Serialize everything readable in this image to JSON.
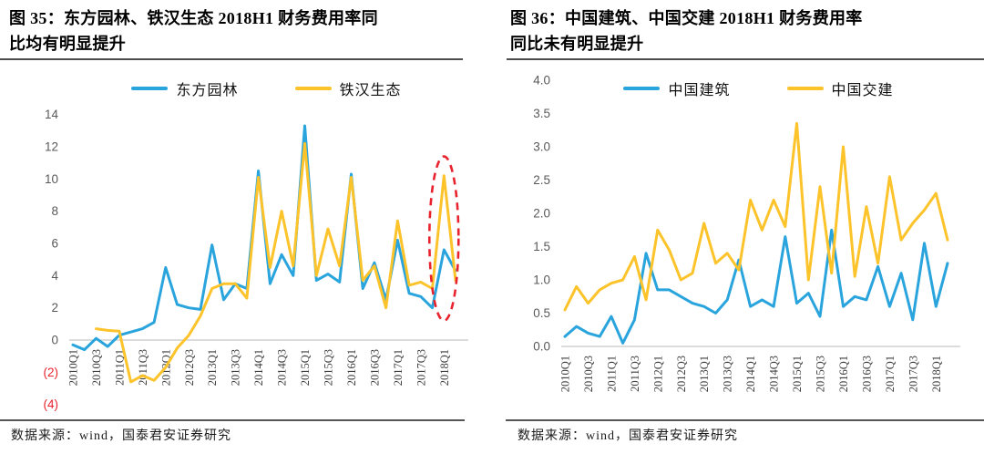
{
  "colors": {
    "blue": "#2aa4dc",
    "yellow": "#fcc32b",
    "red": "#e8232e",
    "axis_text": "#595959",
    "x_tick_text": "#404040",
    "axis_line": "#c8c8c8"
  },
  "figures": [
    {
      "title_lines": [
        "图 35：东方园林、铁汉生态 2018H1 财务费用率同",
        "比均有明显提升"
      ],
      "source": "数据来源：wind，国泰君安证券研究"
    },
    {
      "title_lines": [
        "图 36：中国建筑、中国交建 2018H1 财务费用率",
        "同比未有明显提升"
      ],
      "source": "数据来源：wind，国泰君安证券研究"
    }
  ],
  "chart_data": [
    {
      "type": "line",
      "title": "图 35：东方园林、铁汉生态 2018H1 财务费用率同比均有明显提升",
      "x": [
        "2010Q1",
        "2010Q2",
        "2010Q3",
        "2010Q4",
        "2011Q1",
        "2011Q2",
        "2011Q3",
        "2011Q4",
        "2012Q1",
        "2012Q2",
        "2012Q3",
        "2012Q4",
        "2013Q1",
        "2013Q2",
        "2013Q3",
        "2013Q4",
        "2014Q1",
        "2014Q2",
        "2014Q3",
        "2014Q4",
        "2015Q1",
        "2015Q2",
        "2015Q3",
        "2015Q4",
        "2016Q1",
        "2016Q2",
        "2016Q3",
        "2016Q4",
        "2017Q1",
        "2017Q2",
        "2017Q3",
        "2017Q4",
        "2018Q1",
        "2018Q2"
      ],
      "x_tick_every": 2,
      "ylim": [
        -4,
        14
      ],
      "ytick_step": 2,
      "ytick_format": "paren_negative",
      "grid": false,
      "legend_position": "top-center",
      "series": [
        {
          "name": "东方园林",
          "color_key": "blue",
          "values": [
            -0.3,
            -0.6,
            0.1,
            -0.4,
            0.3,
            0.5,
            0.7,
            1.1,
            4.5,
            2.2,
            2.0,
            1.9,
            5.9,
            2.5,
            3.5,
            3.2,
            10.5,
            3.5,
            5.3,
            4.0,
            13.3,
            3.7,
            4.1,
            3.6,
            10.3,
            3.2,
            4.8,
            2.5,
            6.2,
            2.9,
            2.7,
            2.0,
            5.6,
            4.3
          ]
        },
        {
          "name": "铁汉生态",
          "color_key": "yellow",
          "values": [
            null,
            null,
            0.7,
            0.6,
            0.55,
            -2.6,
            -2.2,
            -2.5,
            -1.7,
            -0.5,
            0.3,
            1.5,
            3.2,
            3.5,
            3.5,
            2.6,
            10.1,
            4.5,
            8.0,
            4.6,
            12.2,
            4.0,
            6.9,
            4.6,
            10.1,
            3.7,
            4.6,
            2.0,
            7.4,
            3.4,
            3.6,
            3.2,
            10.2,
            3.7
          ]
        }
      ],
      "annotation_ellipse": {
        "x_index": 32,
        "center_value": 6.3,
        "radius_value": 5.1,
        "radius_px_x": 16,
        "color_key": "red"
      }
    },
    {
      "type": "line",
      "title": "图 36：中国建筑、中国交建 2018H1 财务费用率同比未有明显提升",
      "x": [
        "2010Q1",
        "2010Q2",
        "2010Q3",
        "2010Q4",
        "2011Q1",
        "2011Q2",
        "2011Q3",
        "2011Q4",
        "2012Q1",
        "2012Q2",
        "2012Q3",
        "2012Q4",
        "2013Q1",
        "2013Q2",
        "2013Q3",
        "2013Q4",
        "2014Q1",
        "2014Q2",
        "2014Q3",
        "2014Q4",
        "2015Q1",
        "2015Q2",
        "2015Q3",
        "2015Q4",
        "2016Q1",
        "2016Q2",
        "2016Q3",
        "2016Q4",
        "2017Q1",
        "2017Q2",
        "2017Q3",
        "2017Q4",
        "2018Q1",
        "2018Q2"
      ],
      "x_tick_every": 2,
      "ylim": [
        0,
        4
      ],
      "ytick_step": 0.5,
      "ytick_format": "one_decimal",
      "grid": false,
      "legend_position": "top-center",
      "series": [
        {
          "name": "中国建筑",
          "color_key": "blue",
          "values": [
            0.15,
            0.3,
            0.2,
            0.15,
            0.45,
            0.05,
            0.4,
            1.4,
            0.85,
            0.85,
            0.75,
            0.65,
            0.6,
            0.5,
            0.7,
            1.3,
            0.6,
            0.7,
            0.6,
            1.65,
            0.65,
            0.8,
            0.45,
            1.75,
            0.6,
            0.75,
            0.7,
            1.2,
            0.6,
            1.1,
            0.4,
            1.55,
            0.6,
            1.25
          ]
        },
        {
          "name": "中国交建",
          "color_key": "yellow",
          "values": [
            0.55,
            0.9,
            0.65,
            0.85,
            0.95,
            1.0,
            1.35,
            0.7,
            1.75,
            1.45,
            1.0,
            1.1,
            1.85,
            1.25,
            1.4,
            1.15,
            2.2,
            1.75,
            2.2,
            1.8,
            3.35,
            1.0,
            2.4,
            1.1,
            3.0,
            1.05,
            2.1,
            1.25,
            2.55,
            1.6,
            1.85,
            2.05,
            2.3,
            1.6
          ]
        }
      ]
    }
  ]
}
